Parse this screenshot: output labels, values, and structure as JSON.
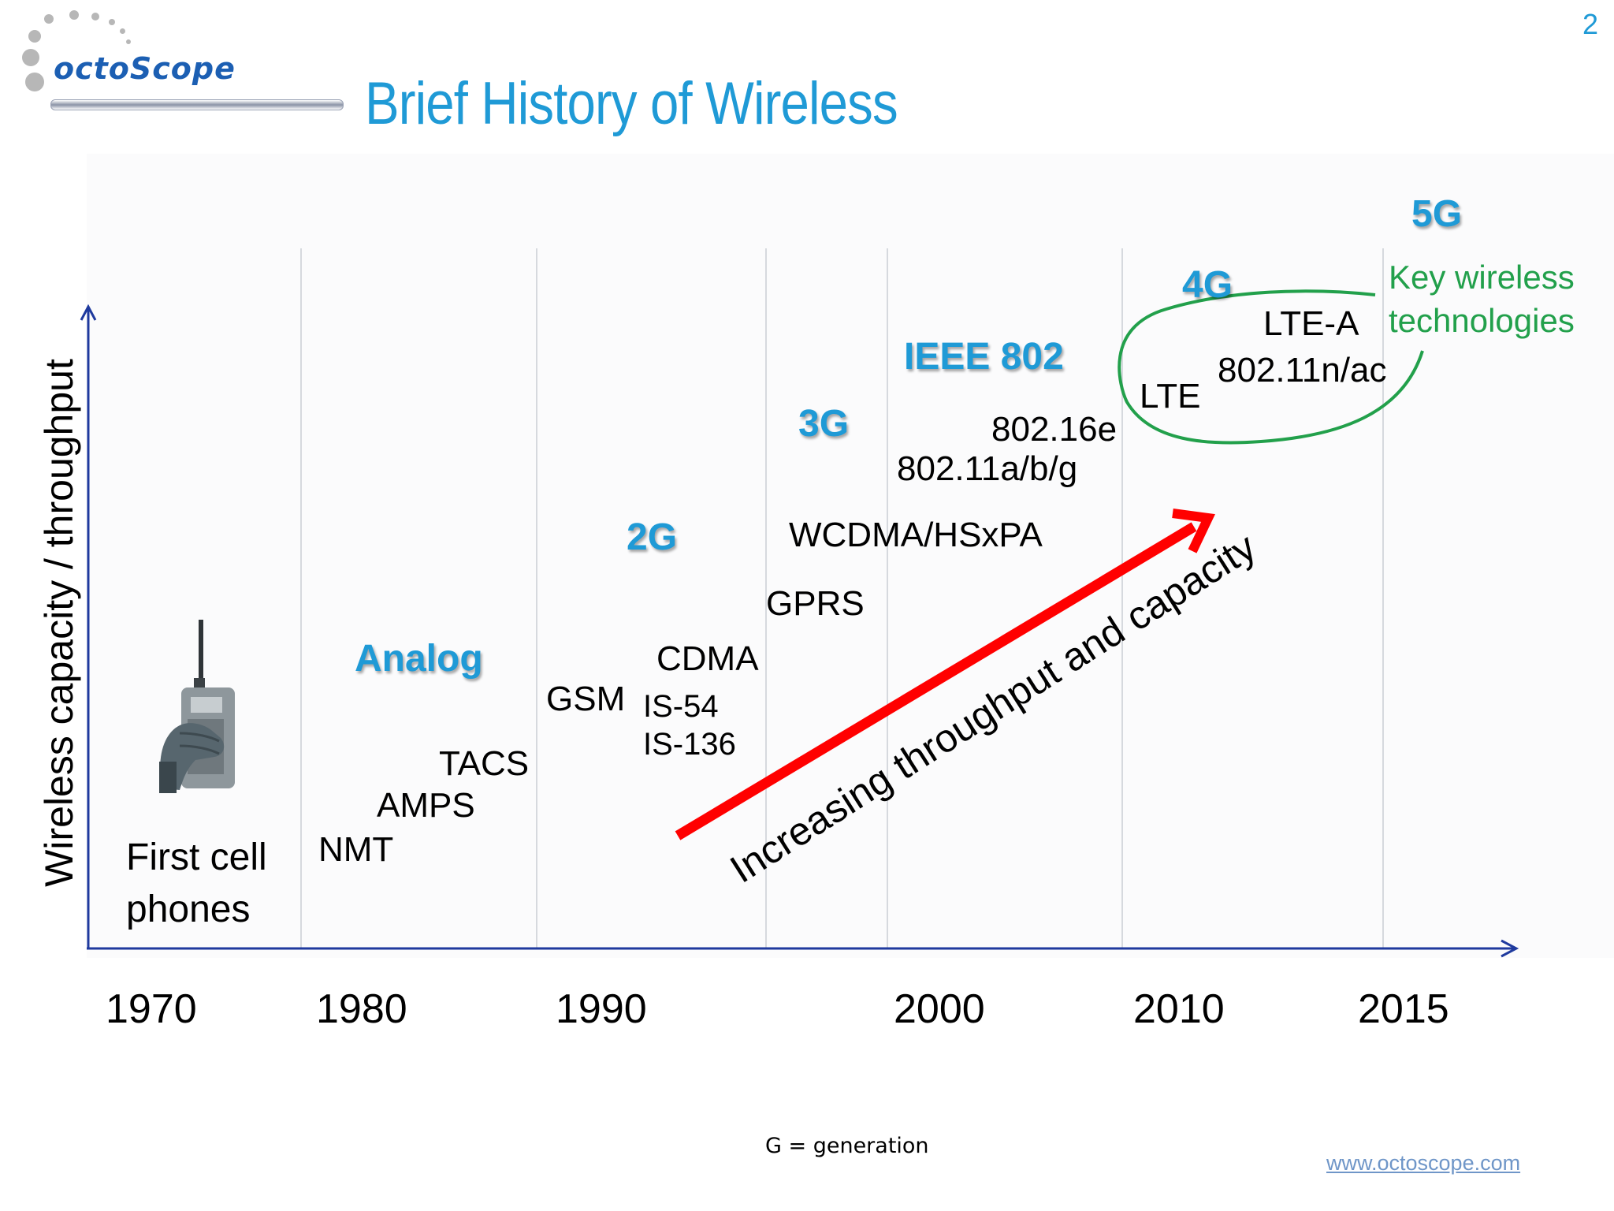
{
  "slide": {
    "title": "Brief History of Wireless",
    "page_number": "2",
    "logo_text": "octoScope",
    "footnote": "G = generation",
    "website": "www.octoscope.com"
  },
  "colors": {
    "title_blue": "#1f9ad6",
    "axis_blue": "#1f3a9e",
    "trend_red": "#ff0000",
    "ellipse_green": "#22a04b",
    "logo_blue": "#1c5fb3"
  },
  "axes": {
    "y_label": "Wireless capacity / throughput",
    "x_years": [
      "1970",
      "1980",
      "1990",
      "2000",
      "2010",
      "2015"
    ]
  },
  "generations": [
    {
      "id": "analog",
      "label": "Analog"
    },
    {
      "id": "2g",
      "label": "2G"
    },
    {
      "id": "3g",
      "label": "3G"
    },
    {
      "id": "ieee",
      "label": "IEEE 802"
    },
    {
      "id": "4g",
      "label": "4G"
    },
    {
      "id": "5g",
      "label": "5G"
    }
  ],
  "technologies": {
    "nmt": "NMT",
    "amps": "AMPS",
    "tacs": "TACS",
    "gsm": "GSM",
    "is54": "IS-54",
    "is136": "IS-136",
    "cdma": "CDMA",
    "gprs": "GPRS",
    "wcdma": "WCDMA/HSxPA",
    "wifi_abg": "802.11a/b/g",
    "wimax": "802.16e",
    "lte": "LTE",
    "wifi_nac": "802.11n/ac",
    "lte_a": "LTE-A"
  },
  "annotations": {
    "first_cell_phones": "First cell phones",
    "trend": "Increasing throughput and capacity",
    "key_tech": "Key wireless technologies"
  },
  "icons": {
    "logo": "octoscope-logo-icon",
    "phone": "brick-cell-phone-icon"
  }
}
